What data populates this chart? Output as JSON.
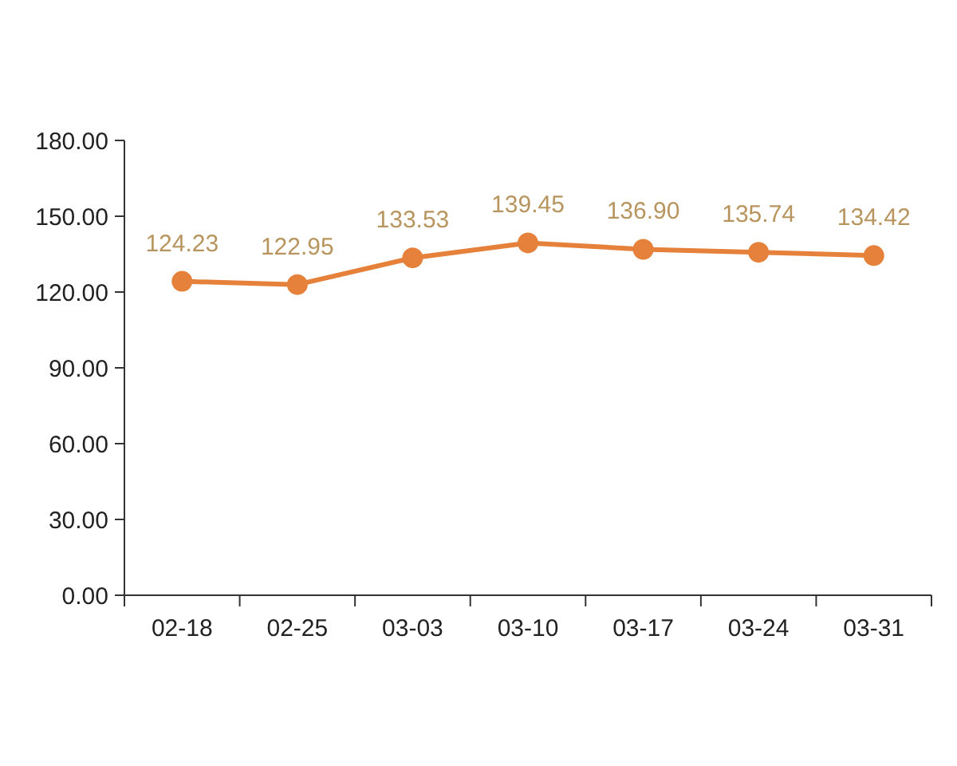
{
  "chart_data": {
    "type": "line",
    "categories": [
      "02-18",
      "02-25",
      "03-03",
      "03-10",
      "03-17",
      "03-24",
      "03-31"
    ],
    "values": [
      124.23,
      122.95,
      133.53,
      139.45,
      136.9,
      135.74,
      134.42
    ],
    "value_labels": [
      "124.23",
      "122.95",
      "133.53",
      "139.45",
      "136.90",
      "135.74",
      "134.42"
    ],
    "color": "#e5813a",
    "ylim": [
      0,
      180
    ],
    "yticks": [
      {
        "value": 0,
        "label": "0.00"
      },
      {
        "value": 30,
        "label": "30.00"
      },
      {
        "value": 60,
        "label": "60.00"
      },
      {
        "value": 90,
        "label": "90.00"
      },
      {
        "value": 120,
        "label": "120.00"
      },
      {
        "value": 150,
        "label": "150.00"
      },
      {
        "value": 180,
        "label": "180.00"
      }
    ],
    "marker": "circle",
    "line_style": "solid"
  }
}
